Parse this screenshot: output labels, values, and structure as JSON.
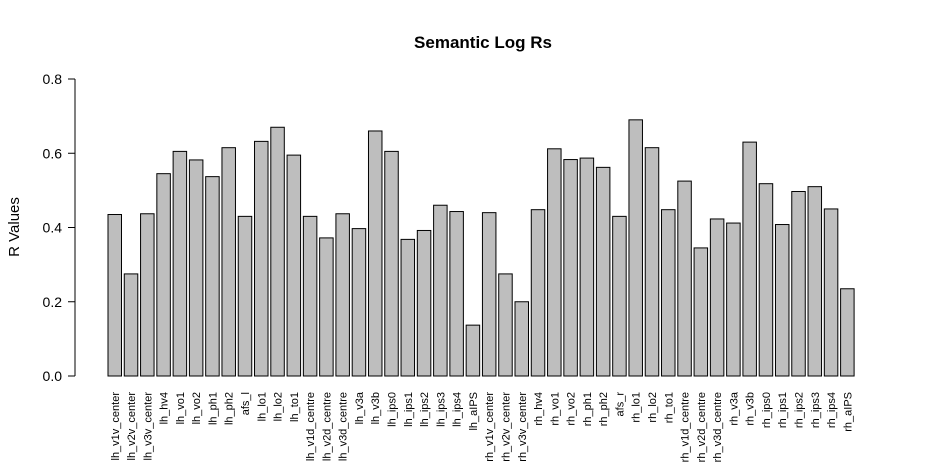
{
  "chart_data": {
    "type": "bar",
    "title": "Semantic Log Rs",
    "ylabel": "R Values",
    "xlabel": "",
    "ylim": [
      0,
      0.8
    ],
    "yticks": [
      "0.0",
      "0.2",
      "0.4",
      "0.6",
      "0.8"
    ],
    "grid": false,
    "bar_color": "#bebebe",
    "categories": [
      "lh_v1v_center",
      "lh_v2v_center",
      "lh_v3v_center",
      "lh_hv4",
      "lh_vo1",
      "lh_vo2",
      "lh_ph1",
      "lh_ph2",
      "afs_l",
      "lh_lo1",
      "lh_lo2",
      "lh_to1",
      "lh_v1d_centre",
      "lh_v2d_centre",
      "lh_v3d_centre",
      "lh_v3a",
      "lh_v3b",
      "lh_ips0",
      "lh_ips1",
      "lh_ips2",
      "lh_ips3",
      "lh_ips4",
      "lh_aIPS",
      "rh_v1v_center",
      "rh_v2v_center",
      "rh_v3v_center",
      "rh_hv4",
      "rh_vo1",
      "rh_vo2",
      "rh_ph1",
      "rh_ph2",
      "afs_r",
      "rh_lo1",
      "rh_lo2",
      "rh_to1",
      "rh_v1d_centre",
      "rh_v2d_centre",
      "rh_v3d_centre",
      "rh_v3a",
      "rh_v3b",
      "rh_ips0",
      "rh_ips1",
      "rh_ips2",
      "rh_ips3",
      "rh_ips4",
      "rh_aIPS"
    ],
    "values": [
      0.435,
      0.275,
      0.437,
      0.545,
      0.605,
      0.582,
      0.537,
      0.615,
      0.43,
      0.632,
      0.67,
      0.595,
      0.43,
      0.372,
      0.437,
      0.397,
      0.66,
      0.605,
      0.368,
      0.392,
      0.46,
      0.443,
      0.137,
      0.44,
      0.275,
      0.2,
      0.448,
      0.612,
      0.583,
      0.587,
      0.562,
      0.43,
      0.69,
      0.615,
      0.448,
      0.525,
      0.345,
      0.423,
      0.412,
      0.63,
      0.518,
      0.408,
      0.497,
      0.51,
      0.45,
      0.235
    ]
  }
}
